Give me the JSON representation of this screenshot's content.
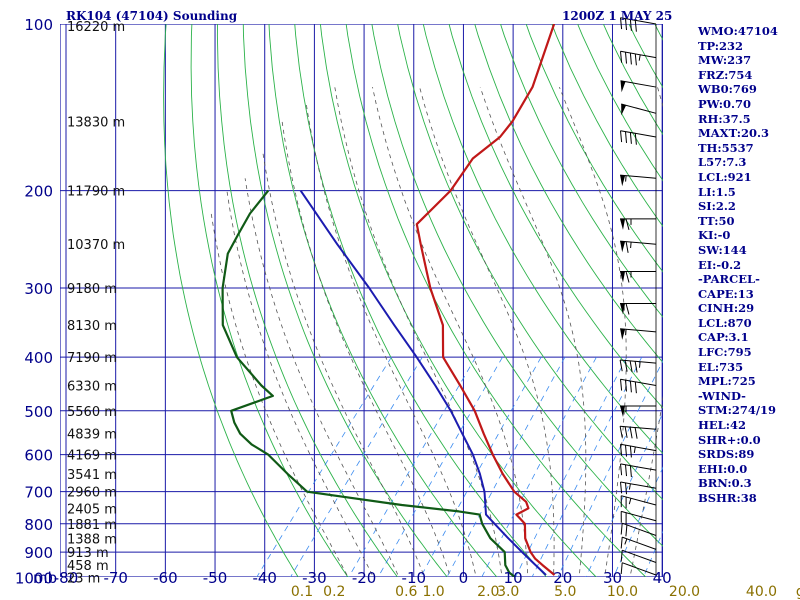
{
  "header": {
    "title": "RK104 (47104) Sounding",
    "timestamp": "1200Z  1 MAY 25"
  },
  "indices": [
    "WMO:47104",
    "TP:232",
    "MW:237",
    "FRZ:754",
    "WB0:769",
    "PW:0.70",
    "RH:37.5",
    "MAXT:20.3",
    "TH:5537",
    "L57:7.3",
    "LCL:921",
    "LI:1.5",
    "SI:2.2",
    "TT:50",
    "KI:-0",
    "SW:144",
    "EI:-0.2",
    "-PARCEL-",
    "CAPE:13",
    "CINH:29",
    "LCL:870",
    "CAP:3.1",
    "LFC:795",
    "EL:735",
    "MPL:725",
    "-WIND-",
    "STM:274/19",
    "HEL:42",
    "SHR+:0.0",
    "SRDS:89",
    "EHI:0.0",
    "BRN:0.3",
    "BSHR:38"
  ],
  "colors": {
    "axis": "#00008b",
    "grid": "#1a1aa8",
    "dry_adiabat": "#2cb24a",
    "moist_adiabat": "#555555",
    "mixing_ratio": "#3c8cf0",
    "temperature": "#c01818",
    "dewpoint": "#105a16",
    "parcel": "#1c1cb0",
    "mixing_label": "#8a7000"
  },
  "chart_data": {
    "type": "line",
    "xlabel": "",
    "ylabel": "mb",
    "pressure_levels": [
      100,
      200,
      300,
      400,
      500,
      600,
      700,
      800,
      900,
      1000
    ],
    "pressure_tick_labels": [
      "100",
      "200",
      "300",
      "400",
      "500",
      "600",
      "700",
      "800",
      "900",
      "1000"
    ],
    "pressure_unit_label": "mb",
    "temperature_ticks": [
      -80,
      -70,
      -60,
      -50,
      -40,
      -30,
      -20,
      -10,
      0,
      10,
      20,
      30,
      40
    ],
    "temperature_tick_labels": [
      "-80",
      "-70",
      "-60",
      "-50",
      "-40",
      "-30",
      "-20",
      "-10",
      "0",
      "10",
      "20",
      "30",
      "40"
    ],
    "xlim": [
      -80,
      42
    ],
    "ylim": [
      100,
      1050
    ],
    "y_scale": "log",
    "height_labels": [
      {
        "p": 100,
        "text": "16220 m"
      },
      {
        "p": 150,
        "text": "13830 m"
      },
      {
        "p": 200,
        "text": "11790 m"
      },
      {
        "p": 250,
        "text": "10370 m"
      },
      {
        "p": 300,
        "text": "9180 m"
      },
      {
        "p": 350,
        "text": "8130 m"
      },
      {
        "p": 400,
        "text": "7190 m"
      },
      {
        "p": 450,
        "text": "6330 m"
      },
      {
        "p": 500,
        "text": "5560 m"
      },
      {
        "p": 550,
        "text": "4839 m"
      },
      {
        "p": 600,
        "text": "4169 m"
      },
      {
        "p": 650,
        "text": "3541 m"
      },
      {
        "p": 700,
        "text": "2960 m"
      },
      {
        "p": 750,
        "text": "2405 m"
      },
      {
        "p": 800,
        "text": "1881 m"
      },
      {
        "p": 850,
        "text": "1388 m"
      },
      {
        "p": 900,
        "text": "913 m"
      },
      {
        "p": 950,
        "text": "458 m"
      },
      {
        "p": 1000,
        "text": "23 m"
      }
    ],
    "mixing_ratio_labels": [
      "0.1",
      "0.2",
      "0.6",
      "1.0",
      "2.0",
      "3.0",
      "5.0",
      "10.0",
      "20.0",
      "40.0",
      "g/kg"
    ],
    "mixing_ratio_label_positions": [
      -32.5,
      -26,
      -11.5,
      -6,
      5,
      9,
      20.5,
      32,
      44.5,
      60,
      70
    ],
    "series": [
      {
        "name": "",
        "p": [
          990,
          950,
          925,
          900,
          850,
          800,
          770,
          750,
          730,
          700,
          650,
          600,
          550,
          500,
          450,
          400,
          350,
          300,
          250,
          230,
          200,
          175,
          160,
          150,
          130,
          100
        ],
        "values": [
          18.0,
          14.0,
          11.5,
          9.5,
          6.2,
          3.8,
          0.6,
          2.0,
          0.5,
          -3.5,
          -8.7,
          -13.8,
          -19.0,
          -24.5,
          -31.5,
          -39.5,
          -44.7,
          -53.2,
          -62.2,
          -66.2,
          -64.8,
          -65.5,
          -63.5,
          -63.5,
          -65.0,
          -70.8
        ]
      },
      {
        "name": "",
        "p": [
          1000,
          980,
          950,
          900,
          850,
          800,
          770,
          760,
          740,
          700,
          650,
          600,
          575,
          550,
          525,
          500,
          470,
          450,
          400,
          350,
          300,
          260,
          240,
          220,
          200
        ],
        "values": [
          10.5,
          8.5,
          6.5,
          4.3,
          -0.8,
          -4.8,
          -6.8,
          -11.5,
          -24.0,
          -45.2,
          -52.0,
          -59.0,
          -64.0,
          -68.0,
          -71.0,
          -73.5,
          -67.5,
          -71.5,
          -81.0,
          -89.0,
          -95.0,
          -99.5,
          -100.5,
          -101.5,
          -101.5
        ]
      },
      {
        "name": "",
        "p": [
          990,
          950,
          900,
          850,
          800,
          770,
          700,
          650,
          600,
          550,
          500,
          450,
          400,
          350,
          300,
          250,
          200
        ],
        "values": [
          16.3,
          12.6,
          7.8,
          2.8,
          -2.3,
          -5.5,
          -9.5,
          -13.3,
          -17.8,
          -23.3,
          -29.3,
          -36.5,
          -44.8,
          -54.5,
          -65.5,
          -79.0,
          -95.0
        ]
      }
    ],
    "wind_barbs": [
      {
        "p": 100,
        "dir": 280,
        "spd": 40
      },
      {
        "p": 115,
        "dir": 280,
        "spd": 45
      },
      {
        "p": 130,
        "dir": 280,
        "spd": 50
      },
      {
        "p": 145,
        "dir": 285,
        "spd": 50
      },
      {
        "p": 160,
        "dir": 280,
        "spd": 40
      },
      {
        "p": 190,
        "dir": 275,
        "spd": 55
      },
      {
        "p": 225,
        "dir": 270,
        "spd": 65
      },
      {
        "p": 250,
        "dir": 275,
        "spd": 65
      },
      {
        "p": 280,
        "dir": 270,
        "spd": 65
      },
      {
        "p": 320,
        "dir": 270,
        "spd": 60
      },
      {
        "p": 360,
        "dir": 275,
        "spd": 55
      },
      {
        "p": 410,
        "dir": 275,
        "spd": 45
      },
      {
        "p": 450,
        "dir": 280,
        "spd": 40
      },
      {
        "p": 490,
        "dir": 270,
        "spd": 55
      },
      {
        "p": 540,
        "dir": 275,
        "spd": 40
      },
      {
        "p": 590,
        "dir": 280,
        "spd": 35
      },
      {
        "p": 640,
        "dir": 280,
        "spd": 30
      },
      {
        "p": 690,
        "dir": 280,
        "spd": 25
      },
      {
        "p": 740,
        "dir": 285,
        "spd": 25
      },
      {
        "p": 790,
        "dir": 285,
        "spd": 20
      },
      {
        "p": 840,
        "dir": 290,
        "spd": 20
      },
      {
        "p": 890,
        "dir": 290,
        "spd": 15
      },
      {
        "p": 940,
        "dir": 290,
        "spd": 10
      },
      {
        "p": 990,
        "dir": 290,
        "spd": 10
      }
    ]
  }
}
